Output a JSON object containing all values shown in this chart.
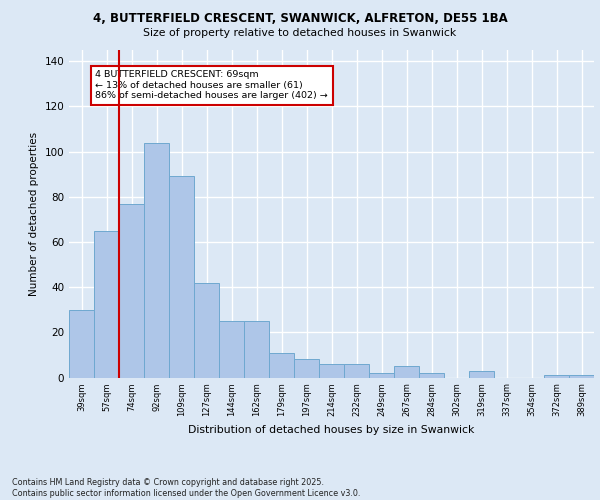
{
  "title_line1": "4, BUTTERFIELD CRESCENT, SWANWICK, ALFRETON, DE55 1BA",
  "title_line2": "Size of property relative to detached houses in Swanwick",
  "xlabel": "Distribution of detached houses by size in Swanwick",
  "ylabel": "Number of detached properties",
  "bar_labels": [
    "39sqm",
    "57sqm",
    "74sqm",
    "92sqm",
    "109sqm",
    "127sqm",
    "144sqm",
    "162sqm",
    "179sqm",
    "197sqm",
    "214sqm",
    "232sqm",
    "249sqm",
    "267sqm",
    "284sqm",
    "302sqm",
    "319sqm",
    "337sqm",
    "354sqm",
    "372sqm",
    "389sqm"
  ],
  "bar_values": [
    30,
    65,
    77,
    104,
    89,
    42,
    25,
    25,
    11,
    8,
    6,
    6,
    2,
    5,
    2,
    0,
    3,
    0,
    0,
    1,
    1
  ],
  "bar_color": "#aec6e8",
  "bar_edge_color": "#6fa8d0",
  "vline_x_idx": 1,
  "vline_color": "#cc0000",
  "annotation_lines": [
    "4 BUTTERFIELD CRESCENT: 69sqm",
    "← 13% of detached houses are smaller (61)",
    "86% of semi-detached houses are larger (402) →"
  ],
  "annotation_box_color": "#cc0000",
  "ylim": [
    0,
    145
  ],
  "yticks": [
    0,
    20,
    40,
    60,
    80,
    100,
    120,
    140
  ],
  "bg_color": "#dce8f5",
  "grid_color": "#ffffff",
  "footer": "Contains HM Land Registry data © Crown copyright and database right 2025.\nContains public sector information licensed under the Open Government Licence v3.0."
}
